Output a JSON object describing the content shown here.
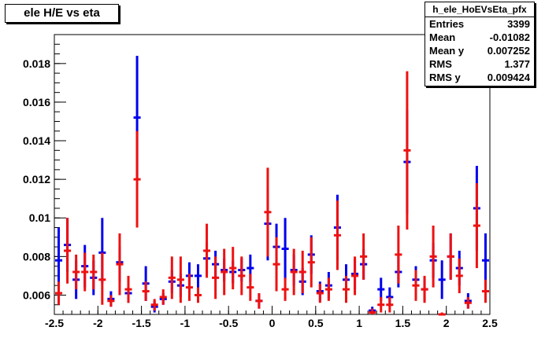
{
  "title": "ele H/E vs eta",
  "stats": {
    "name": "h_ele_HoEVsEta_pfx",
    "rows": [
      {
        "label": "Entries",
        "value": "3399"
      },
      {
        "label": "Mean",
        "value": "-0.01082"
      },
      {
        "label": "Mean y",
        "value": "0.007252"
      },
      {
        "label": "RMS",
        "value": "1.377"
      },
      {
        "label": "RMS y",
        "value": "0.009424"
      }
    ]
  },
  "colors": {
    "series_blue": "#0000ee",
    "series_red": "#ee1111"
  },
  "chart_data": {
    "type": "scatter",
    "xlim": [
      -2.5,
      2.5
    ],
    "ylim": [
      0.005,
      0.0195
    ],
    "xticks": [
      -2.5,
      -2,
      -1.5,
      -1,
      -0.5,
      0,
      0.5,
      1,
      1.5,
      2,
      2.5
    ],
    "xtick_labels": [
      "-2.5",
      "-2",
      "-1.5",
      "-1",
      "-0.5",
      "0",
      "0.5",
      "1",
      "1.5",
      "2",
      "2.5"
    ],
    "yticks": [
      0.006,
      0.008,
      0.01,
      0.012,
      0.014,
      0.016,
      0.018
    ],
    "ytick_labels": [
      "0.006",
      "0.008",
      "0.01",
      "0.012",
      "0.014",
      "0.016",
      "0.018"
    ],
    "bin_width": 0.1,
    "series": [
      {
        "color": "blue",
        "points": [
          {
            "x": -2.45,
            "y": 0.0078,
            "lo": 0.0056,
            "hi": 0.0095
          },
          {
            "x": -2.35,
            "y": 0.0086,
            "lo": 0.0072,
            "hi": 0.01
          },
          {
            "x": -2.25,
            "y": 0.0068,
            "lo": 0.0058,
            "hi": 0.0078
          },
          {
            "x": -2.15,
            "y": 0.0075,
            "lo": 0.0064,
            "hi": 0.0086
          },
          {
            "x": -2.05,
            "y": 0.0069,
            "lo": 0.006,
            "hi": 0.0078
          },
          {
            "x": -1.95,
            "y": 0.0082,
            "lo": 0.0066,
            "hi": 0.01
          },
          {
            "x": -1.85,
            "y": 0.0058,
            "lo": 0.0054,
            "hi": 0.0062
          },
          {
            "x": -1.75,
            "y": 0.0077,
            "lo": 0.0067,
            "hi": 0.0085
          },
          {
            "x": -1.65,
            "y": 0.0061,
            "lo": 0.0056,
            "hi": 0.0066
          },
          {
            "x": -1.55,
            "y": 0.0152,
            "lo": 0.012,
            "hi": 0.0184
          },
          {
            "x": -1.45,
            "y": 0.0066,
            "lo": 0.0057,
            "hi": 0.0075
          },
          {
            "x": -1.35,
            "y": 0.0054,
            "lo": 0.0051,
            "hi": 0.0057
          },
          {
            "x": -1.25,
            "y": 0.0058,
            "lo": 0.0055,
            "hi": 0.0061
          },
          {
            "x": -1.15,
            "y": 0.0067,
            "lo": 0.0061,
            "hi": 0.0073
          },
          {
            "x": -1.05,
            "y": 0.0065,
            "lo": 0.0059,
            "hi": 0.0071
          },
          {
            "x": -0.95,
            "y": 0.007,
            "lo": 0.0063,
            "hi": 0.0077
          },
          {
            "x": -0.85,
            "y": 0.007,
            "lo": 0.0063,
            "hi": 0.0076
          },
          {
            "x": -0.75,
            "y": 0.0079,
            "lo": 0.0071,
            "hi": 0.0087
          },
          {
            "x": -0.65,
            "y": 0.0076,
            "lo": 0.0069,
            "hi": 0.0083
          },
          {
            "x": -0.55,
            "y": 0.0073,
            "lo": 0.0067,
            "hi": 0.0079
          },
          {
            "x": -0.45,
            "y": 0.0072,
            "lo": 0.0066,
            "hi": 0.0078
          },
          {
            "x": -0.35,
            "y": 0.0073,
            "lo": 0.0067,
            "hi": 0.0079
          },
          {
            "x": -0.25,
            "y": 0.0074,
            "lo": 0.0067,
            "hi": 0.0081
          },
          {
            "x": -0.15,
            "y": 0.0057,
            "lo": 0.0053,
            "hi": 0.0061
          },
          {
            "x": -0.05,
            "y": 0.0097,
            "lo": 0.0078,
            "hi": 0.0115
          },
          {
            "x": 0.05,
            "y": 0.0085,
            "lo": 0.0073,
            "hi": 0.0097
          },
          {
            "x": 0.15,
            "y": 0.0084,
            "lo": 0.0068,
            "hi": 0.01
          },
          {
            "x": 0.25,
            "y": 0.0073,
            "lo": 0.0065,
            "hi": 0.0081
          },
          {
            "x": 0.35,
            "y": 0.0067,
            "lo": 0.006,
            "hi": 0.0074
          },
          {
            "x": 0.45,
            "y": 0.0081,
            "lo": 0.0071,
            "hi": 0.0091
          },
          {
            "x": 0.55,
            "y": 0.0062,
            "lo": 0.0057,
            "hi": 0.0067
          },
          {
            "x": 0.65,
            "y": 0.0065,
            "lo": 0.0058,
            "hi": 0.0072
          },
          {
            "x": 0.75,
            "y": 0.0095,
            "lo": 0.0078,
            "hi": 0.0112
          },
          {
            "x": 0.85,
            "y": 0.0068,
            "lo": 0.006,
            "hi": 0.0076
          },
          {
            "x": 0.95,
            "y": 0.0071,
            "lo": 0.0063,
            "hi": 0.0079
          },
          {
            "x": 1.05,
            "y": 0.0076,
            "lo": 0.0068,
            "hi": 0.0084
          },
          {
            "x": 1.15,
            "y": 0.0052,
            "lo": 0.005,
            "hi": 0.0054
          },
          {
            "x": 1.25,
            "y": 0.0063,
            "lo": 0.0057,
            "hi": 0.0069
          },
          {
            "x": 1.35,
            "y": 0.0059,
            "lo": 0.0054,
            "hi": 0.0064
          },
          {
            "x": 1.45,
            "y": 0.0072,
            "lo": 0.0064,
            "hi": 0.008
          },
          {
            "x": 1.55,
            "y": 0.0129,
            "lo": 0.0102,
            "hi": 0.0156
          },
          {
            "x": 1.65,
            "y": 0.0068,
            "lo": 0.0061,
            "hi": 0.0075
          },
          {
            "x": 1.75,
            "y": 0.0063,
            "lo": 0.0057,
            "hi": 0.0069
          },
          {
            "x": 1.85,
            "y": 0.0078,
            "lo": 0.0069,
            "hi": 0.0087
          },
          {
            "x": 1.95,
            "y": 0.0068,
            "lo": 0.0058,
            "hi": 0.0078
          },
          {
            "x": 2.05,
            "y": 0.008,
            "lo": 0.0068,
            "hi": 0.0092
          },
          {
            "x": 2.15,
            "y": 0.0074,
            "lo": 0.0065,
            "hi": 0.0083
          },
          {
            "x": 2.25,
            "y": 0.0057,
            "lo": 0.0053,
            "hi": 0.0061
          },
          {
            "x": 2.35,
            "y": 0.0105,
            "lo": 0.0083,
            "hi": 0.0127
          },
          {
            "x": 2.45,
            "y": 0.0078,
            "lo": 0.0064,
            "hi": 0.0092
          }
        ]
      },
      {
        "color": "red",
        "points": [
          {
            "x": -2.45,
            "y": 0.0061,
            "lo": 0.0055,
            "hi": 0.0067
          },
          {
            "x": -2.35,
            "y": 0.0083,
            "lo": 0.0066,
            "hi": 0.01
          },
          {
            "x": -2.25,
            "y": 0.0072,
            "lo": 0.0063,
            "hi": 0.0081
          },
          {
            "x": -2.15,
            "y": 0.0072,
            "lo": 0.0062,
            "hi": 0.0082
          },
          {
            "x": -2.05,
            "y": 0.0072,
            "lo": 0.0063,
            "hi": 0.0081
          },
          {
            "x": -1.95,
            "y": 0.0068,
            "lo": 0.0055,
            "hi": 0.0082
          },
          {
            "x": -1.85,
            "y": 0.0057,
            "lo": 0.0054,
            "hi": 0.006
          },
          {
            "x": -1.75,
            "y": 0.0076,
            "lo": 0.006,
            "hi": 0.0092
          },
          {
            "x": -1.65,
            "y": 0.0063,
            "lo": 0.0056,
            "hi": 0.007
          },
          {
            "x": -1.55,
            "y": 0.012,
            "lo": 0.0095,
            "hi": 0.0145
          },
          {
            "x": -1.45,
            "y": 0.0062,
            "lo": 0.0057,
            "hi": 0.0067
          },
          {
            "x": -1.35,
            "y": 0.0055,
            "lo": 0.0052,
            "hi": 0.0058
          },
          {
            "x": -1.25,
            "y": 0.0059,
            "lo": 0.0055,
            "hi": 0.0063
          },
          {
            "x": -1.15,
            "y": 0.0069,
            "lo": 0.0058,
            "hi": 0.008
          },
          {
            "x": -1.05,
            "y": 0.0068,
            "lo": 0.0056,
            "hi": 0.008
          },
          {
            "x": -0.95,
            "y": 0.0064,
            "lo": 0.0057,
            "hi": 0.0071
          },
          {
            "x": -0.85,
            "y": 0.006,
            "lo": 0.0056,
            "hi": 0.0064
          },
          {
            "x": -0.75,
            "y": 0.0083,
            "lo": 0.0069,
            "hi": 0.0097
          },
          {
            "x": -0.65,
            "y": 0.0069,
            "lo": 0.0058,
            "hi": 0.008
          },
          {
            "x": -0.55,
            "y": 0.0072,
            "lo": 0.006,
            "hi": 0.0084
          },
          {
            "x": -0.45,
            "y": 0.0074,
            "lo": 0.0063,
            "hi": 0.0085
          },
          {
            "x": -0.35,
            "y": 0.007,
            "lo": 0.006,
            "hi": 0.008
          },
          {
            "x": -0.25,
            "y": 0.0064,
            "lo": 0.0057,
            "hi": 0.0071
          },
          {
            "x": -0.15,
            "y": 0.0057,
            "lo": 0.0053,
            "hi": 0.0061
          },
          {
            "x": -0.05,
            "y": 0.0103,
            "lo": 0.008,
            "hi": 0.0126
          },
          {
            "x": 0.05,
            "y": 0.0076,
            "lo": 0.0062,
            "hi": 0.009
          },
          {
            "x": 0.15,
            "y": 0.0063,
            "lo": 0.0057,
            "hi": 0.0069
          },
          {
            "x": 0.25,
            "y": 0.0072,
            "lo": 0.006,
            "hi": 0.0084
          },
          {
            "x": 0.35,
            "y": 0.0072,
            "lo": 0.0061,
            "hi": 0.0083
          },
          {
            "x": 0.45,
            "y": 0.0077,
            "lo": 0.0064,
            "hi": 0.009
          },
          {
            "x": 0.55,
            "y": 0.0061,
            "lo": 0.0056,
            "hi": 0.0066
          },
          {
            "x": 0.65,
            "y": 0.0063,
            "lo": 0.0057,
            "hi": 0.0069
          },
          {
            "x": 0.75,
            "y": 0.0091,
            "lo": 0.0073,
            "hi": 0.0109
          },
          {
            "x": 0.85,
            "y": 0.0063,
            "lo": 0.0056,
            "hi": 0.007
          },
          {
            "x": 0.95,
            "y": 0.007,
            "lo": 0.006,
            "hi": 0.008
          },
          {
            "x": 1.05,
            "y": 0.008,
            "lo": 0.0068,
            "hi": 0.0092
          },
          {
            "x": 1.15,
            "y": 0.0051,
            "lo": 0.005,
            "hi": 0.0053
          },
          {
            "x": 1.25,
            "y": 0.0055,
            "lo": 0.0051,
            "hi": 0.0059
          },
          {
            "x": 1.35,
            "y": 0.0055,
            "lo": 0.0051,
            "hi": 0.0059
          },
          {
            "x": 1.45,
            "y": 0.0081,
            "lo": 0.0066,
            "hi": 0.0096
          },
          {
            "x": 1.55,
            "y": 0.0135,
            "lo": 0.0094,
            "hi": 0.0176
          },
          {
            "x": 1.65,
            "y": 0.0065,
            "lo": 0.0057,
            "hi": 0.0073
          },
          {
            "x": 1.75,
            "y": 0.0063,
            "lo": 0.0056,
            "hi": 0.007
          },
          {
            "x": 1.85,
            "y": 0.008,
            "lo": 0.0064,
            "hi": 0.0096
          },
          {
            "x": 1.95,
            "y": 0.005,
            "lo": 0.005,
            "hi": 0.0051
          },
          {
            "x": 2.05,
            "y": 0.008,
            "lo": 0.0068,
            "hi": 0.0092
          },
          {
            "x": 2.15,
            "y": 0.007,
            "lo": 0.0061,
            "hi": 0.0079
          },
          {
            "x": 2.25,
            "y": 0.0056,
            "lo": 0.0053,
            "hi": 0.0059
          },
          {
            "x": 2.35,
            "y": 0.0096,
            "lo": 0.0074,
            "hi": 0.0118
          },
          {
            "x": 2.45,
            "y": 0.0062,
            "lo": 0.0056,
            "hi": 0.0068
          }
        ]
      }
    ]
  }
}
